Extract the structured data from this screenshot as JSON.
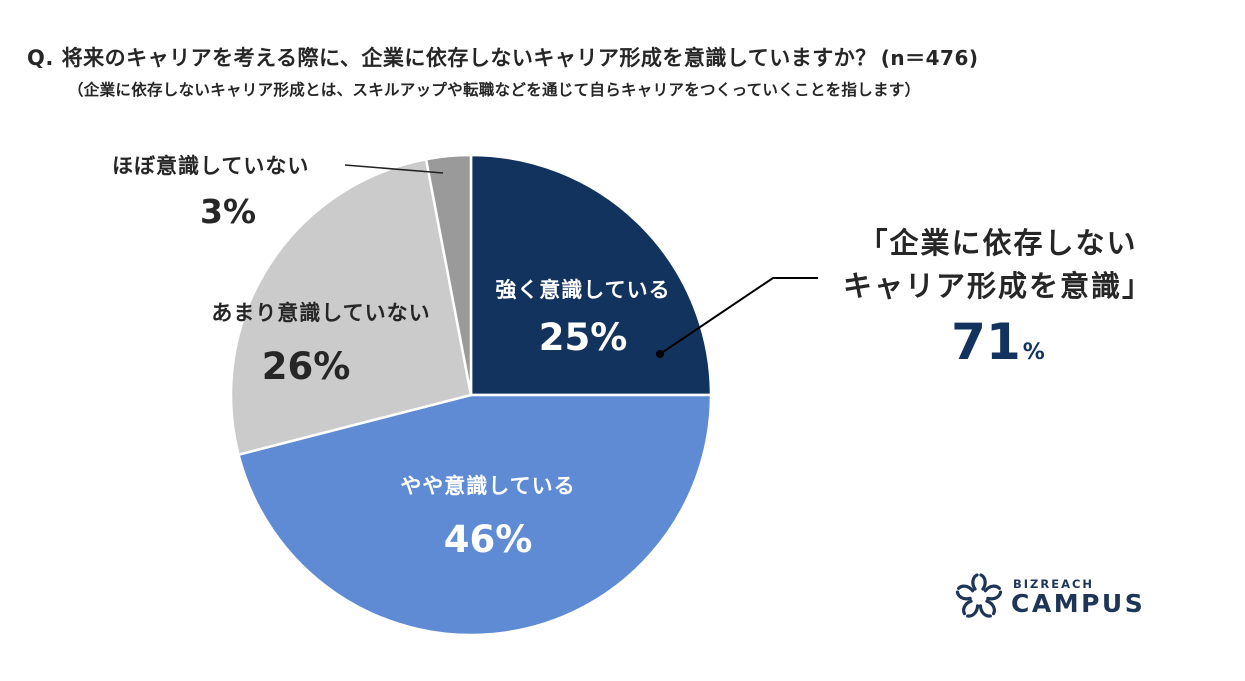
{
  "header": {
    "question": "Q. 将来のキャリアを考える際に、企業に依存しないキャリア形成を意識していますか？",
    "sample_size": "(n＝476)",
    "note": "（企業に依存しないキャリア形成とは、スキルアップや転職などを通じて自らキャリアをつくっていくことを指します）"
  },
  "slices": [
    {
      "label": "強く意識している",
      "pct_label": "25%",
      "color": "#12335e"
    },
    {
      "label": "やや意識している",
      "pct_label": "46%",
      "color": "#5e8bd4"
    },
    {
      "label": "あまり意識していない",
      "pct_label": "26%",
      "color": "#cbcbcb"
    },
    {
      "label": "ほぼ意識していない",
      "pct_label": "3%",
      "color": "#9a9a9a"
    }
  ],
  "callout": {
    "line1": "「企業に依存しない",
    "line2": "キャリア形成を意識」",
    "value": "71",
    "unit": "%",
    "value_color": "#12335e"
  },
  "logo": {
    "small": "BIZREACH",
    "big": "CAMPUS",
    "color": "#1d3557"
  },
  "chart_data": {
    "type": "pie",
    "title": "Q. 将来のキャリアを考える際に、企業に依存しないキャリア形成を意識していますか？(n＝476)",
    "subtitle": "（企業に依存しないキャリア形成とは、スキルアップや転職などを通じて自らキャリアをつくっていくことを指します）",
    "n": 476,
    "categories": [
      "強く意識している",
      "やや意識している",
      "あまり意識していない",
      "ほぼ意識していない"
    ],
    "values": [
      25,
      46,
      26,
      3
    ],
    "unit": "%",
    "colors": [
      "#12335e",
      "#5e8bd4",
      "#cbcbcb",
      "#9a9a9a"
    ],
    "start_angle": "12 o'clock, clockwise",
    "annotations": [
      {
        "text": "「企業に依存しないキャリア形成を意識」71%",
        "refers_to": [
          "強く意識している",
          "やや意識している"
        ]
      }
    ],
    "legend": "none (labels inside/next to slices)"
  }
}
